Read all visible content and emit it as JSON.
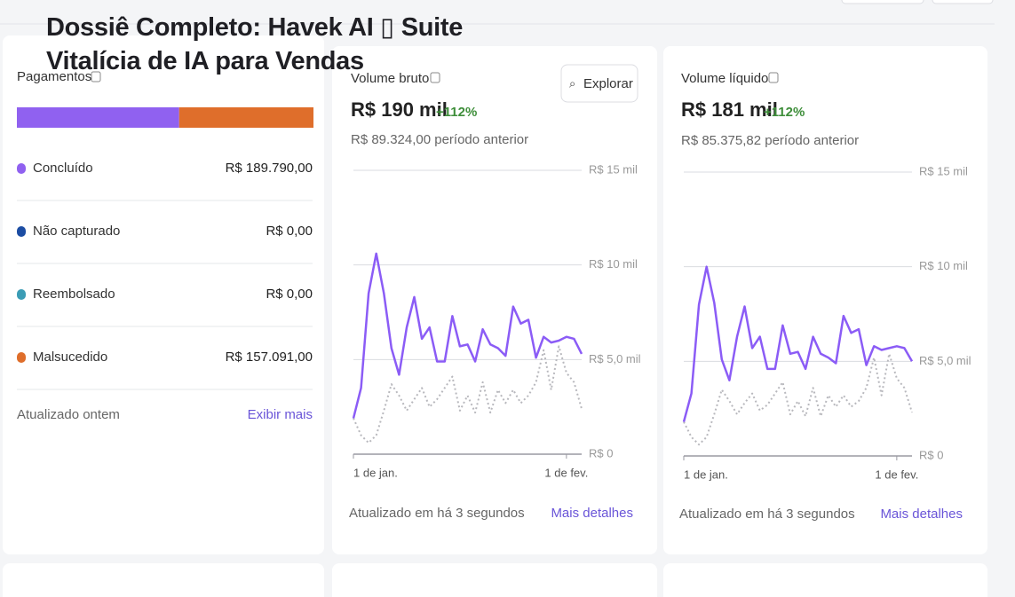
{
  "title": "Dossiê Completo: Havek AI ▯ Suite Vitalícia de IA para Vendas",
  "payments": {
    "title": "Pagamentos",
    "categories": [
      "Concluído",
      "Não capturado",
      "Reembolsado",
      "Malsucedido"
    ],
    "colors": [
      "#9061f0",
      "#1c4da3",
      "#3b9cb5",
      "#df6e2b"
    ],
    "values": [
      189790,
      0,
      0,
      157091
    ],
    "value_labels": [
      "R$ 189.790,00",
      "R$ 0,00",
      "R$ 0,00",
      "R$ 157.091,00"
    ],
    "footer": "Atualizado ontem",
    "link": "Exibir mais"
  },
  "gross": {
    "title": "Volume bruto",
    "amount": "R$ 190 mil",
    "change": "+112%",
    "previous": "R$ 89.324,00 período anterior",
    "button": "Explorar",
    "footer": "Atualizado em há 3 segundos",
    "link": "Mais detalhes",
    "chart_data": {
      "type": "line",
      "categories": [
        "1 de jan.",
        null,
        null,
        null,
        null,
        null,
        null,
        null,
        null,
        null,
        null,
        null,
        null,
        null,
        null,
        null,
        null,
        null,
        null,
        null,
        null,
        null,
        null,
        null,
        null,
        null,
        null,
        null,
        "1 de fev.",
        null,
        null
      ],
      "series": [
        {
          "color": "#8b5cf6",
          "style": "solid",
          "values": [
            1900,
            3500,
            8500,
            10600,
            8500,
            5600,
            4200,
            6700,
            8300,
            6100,
            6700,
            4900,
            4900,
            7300,
            5700,
            5800,
            4900,
            6600,
            5800,
            5600,
            5200,
            7800,
            6900,
            7100,
            5100,
            6200,
            5900,
            6000,
            6200,
            6100,
            5300
          ]
        },
        {
          "color": "#b8b8bd",
          "style": "dotted",
          "values": [
            1900,
            1000,
            600,
            1000,
            2300,
            3700,
            3100,
            2300,
            2900,
            3500,
            2500,
            2900,
            3500,
            4100,
            2300,
            3100,
            2200,
            3800,
            2200,
            3400,
            2700,
            3400,
            2700,
            3100,
            3800,
            5500,
            3400,
            5700,
            4300,
            3800,
            2400
          ]
        }
      ],
      "ylim": [
        0,
        15000
      ],
      "yticks": [
        {
          "value": 0,
          "label": "R$ 0"
        },
        {
          "value": 5000,
          "label": "R$ 5,0 mil"
        },
        {
          "value": 10000,
          "label": "R$ 10 mil"
        },
        {
          "value": 15000,
          "label": "R$ 15 mil"
        }
      ],
      "grid": true
    }
  },
  "net": {
    "title": "Volume líquido",
    "amount": "R$ 181 mil",
    "change": "+112%",
    "previous": "R$ 85.375,82 período anterior",
    "footer": "Atualizado em há 3 segundos",
    "link": "Mais detalhes",
    "chart_data": {
      "type": "line",
      "categories": [
        "1 de jan.",
        null,
        null,
        null,
        null,
        null,
        null,
        null,
        null,
        null,
        null,
        null,
        null,
        null,
        null,
        null,
        null,
        null,
        null,
        null,
        null,
        null,
        null,
        null,
        null,
        null,
        null,
        null,
        "1 de fev.",
        null,
        null
      ],
      "series": [
        {
          "color": "#8b5cf6",
          "style": "solid",
          "values": [
            1800,
            3300,
            8000,
            10000,
            8100,
            5100,
            4000,
            6300,
            7900,
            5700,
            6300,
            4600,
            4600,
            6900,
            5400,
            5500,
            4600,
            6300,
            5400,
            5200,
            4900,
            7400,
            6500,
            6700,
            4800,
            5800,
            5600,
            5700,
            5800,
            5700,
            5000
          ]
        },
        {
          "color": "#b8b8bd",
          "style": "dotted",
          "values": [
            1800,
            1000,
            600,
            1000,
            2200,
            3500,
            2900,
            2200,
            2800,
            3300,
            2400,
            2700,
            3300,
            3900,
            2200,
            2900,
            2100,
            3600,
            2100,
            3200,
            2600,
            3200,
            2600,
            2900,
            3600,
            5200,
            3200,
            5400,
            4100,
            3600,
            2300
          ]
        }
      ],
      "ylim": [
        0,
        15000
      ],
      "yticks": [
        {
          "value": 0,
          "label": "R$ 0"
        },
        {
          "value": 5000,
          "label": "R$ 5,0 mil"
        },
        {
          "value": 10000,
          "label": "R$ 10 mil"
        },
        {
          "value": 15000,
          "label": "R$ 15 mil"
        }
      ],
      "grid": true
    }
  }
}
